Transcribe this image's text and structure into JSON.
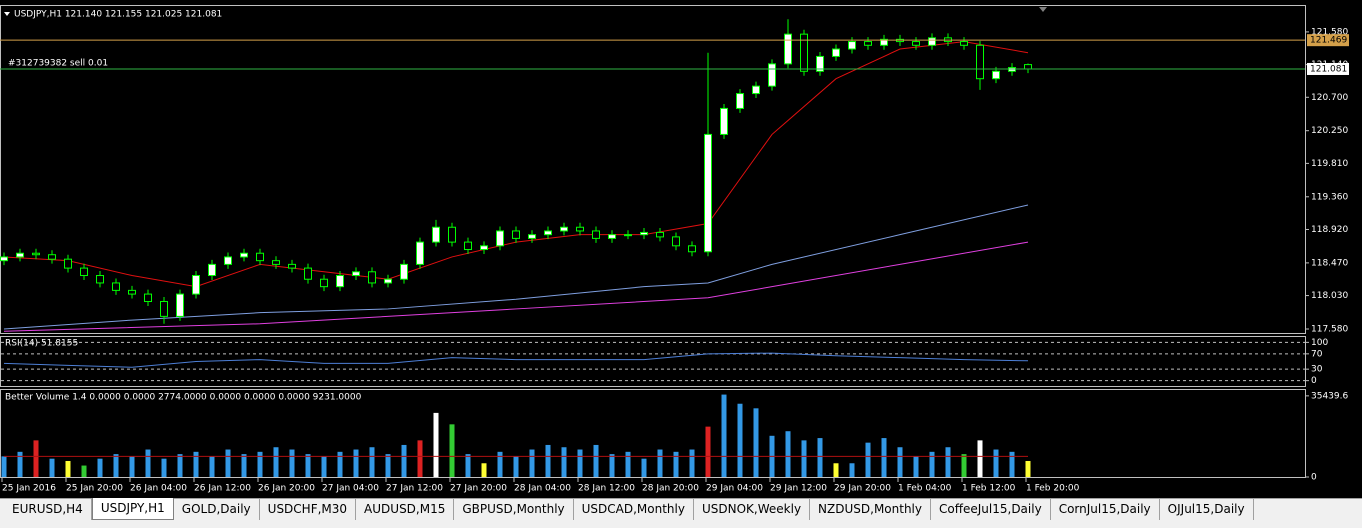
{
  "chart_data": [
    {
      "type": "candlestick",
      "title": "USDJPY,H1  121.140 121.155 121.025 121.081",
      "open": [
        118.5,
        118.55,
        118.6,
        118.58,
        118.52,
        118.4,
        118.3,
        118.2,
        118.1,
        118.05,
        117.95,
        117.75,
        118.05,
        118.3,
        118.45,
        118.55,
        118.6,
        118.5,
        118.45,
        118.4,
        118.25,
        118.15,
        118.3,
        118.35,
        118.2,
        118.25,
        118.45,
        118.75,
        118.95,
        118.75,
        118.65,
        118.7,
        118.9,
        118.8,
        118.85,
        118.9,
        118.95,
        118.9,
        118.8,
        118.85,
        118.85,
        118.88,
        118.82,
        118.7,
        118.62,
        120.2,
        120.55,
        120.75,
        120.85,
        121.15,
        121.55,
        121.05,
        121.25,
        121.35,
        121.45,
        121.4,
        121.48,
        121.45,
        121.4,
        121.5,
        121.45,
        121.4,
        120.95,
        121.05,
        121.14
      ],
      "high": [
        118.61,
        118.66,
        118.66,
        118.64,
        118.58,
        118.46,
        118.36,
        118.26,
        118.16,
        118.11,
        118.01,
        118.11,
        118.36,
        118.51,
        118.61,
        118.66,
        118.66,
        118.56,
        118.51,
        118.46,
        118.31,
        118.36,
        118.41,
        118.41,
        118.31,
        118.51,
        118.81,
        119.05,
        119.01,
        118.81,
        118.76,
        118.96,
        118.96,
        118.91,
        118.96,
        119.01,
        119.01,
        118.96,
        118.91,
        118.91,
        118.94,
        118.94,
        118.88,
        118.76,
        121.3,
        120.61,
        120.81,
        120.91,
        121.21,
        121.75,
        121.61,
        121.31,
        121.41,
        121.51,
        121.51,
        121.54,
        121.54,
        121.51,
        121.56,
        121.56,
        121.51,
        121.46,
        121.11,
        121.16,
        121.155
      ],
      "low": [
        118.44,
        118.49,
        118.52,
        118.46,
        118.34,
        118.24,
        118.14,
        118.04,
        117.99,
        117.89,
        117.65,
        117.69,
        117.99,
        118.24,
        118.39,
        118.49,
        118.44,
        118.39,
        118.34,
        118.19,
        118.09,
        118.09,
        118.24,
        118.14,
        118.14,
        118.19,
        118.39,
        118.69,
        118.69,
        118.59,
        118.59,
        118.64,
        118.74,
        118.74,
        118.79,
        118.84,
        118.84,
        118.74,
        118.74,
        118.79,
        118.79,
        118.76,
        118.64,
        118.56,
        118.56,
        120.14,
        120.49,
        120.69,
        120.79,
        121.09,
        120.99,
        120.99,
        121.19,
        121.29,
        121.34,
        121.34,
        121.39,
        121.34,
        121.34,
        121.39,
        121.34,
        120.8,
        120.89,
        120.99,
        121.025
      ],
      "close": [
        118.55,
        118.6,
        118.58,
        118.52,
        118.4,
        118.3,
        118.2,
        118.1,
        118.05,
        117.95,
        117.75,
        118.05,
        118.3,
        118.45,
        118.55,
        118.6,
        118.5,
        118.45,
        118.4,
        118.25,
        118.15,
        118.3,
        118.35,
        118.2,
        118.25,
        118.45,
        118.75,
        118.95,
        118.75,
        118.65,
        118.7,
        118.9,
        118.8,
        118.85,
        118.9,
        118.95,
        118.9,
        118.8,
        118.85,
        118.85,
        118.88,
        118.82,
        118.7,
        118.62,
        120.2,
        120.55,
        120.75,
        120.85,
        121.15,
        121.55,
        121.05,
        121.25,
        121.35,
        121.45,
        121.4,
        121.48,
        121.45,
        121.4,
        121.5,
        121.45,
        121.4,
        120.95,
        121.05,
        121.1,
        121.081
      ],
      "bull_color": "#ffffff",
      "bear_color": "#000000",
      "wick_color": "#00ff00",
      "ylim": [
        117.526,
        121.929
      ],
      "yticks": [
        {
          "value": 121.58,
          "label": "121.580"
        },
        {
          "value": 121.14,
          "label": "121.140"
        },
        {
          "value": 120.7,
          "label": "120.700"
        },
        {
          "value": 120.25,
          "label": "120.250"
        },
        {
          "value": 119.81,
          "label": "119.810"
        },
        {
          "value": 119.36,
          "label": "119.360"
        },
        {
          "value": 118.92,
          "label": "118.920"
        },
        {
          "value": 118.47,
          "label": "118.470"
        },
        {
          "value": 118.03,
          "label": "118.030"
        },
        {
          "value": 117.58,
          "label": "117.580"
        }
      ],
      "x_labels": [
        "25 Jan 2016",
        "25 Jan 20:00",
        "26 Jan 04:00",
        "26 Jan 12:00",
        "26 Jan 20:00",
        "27 Jan 04:00",
        "27 Jan 12:00",
        "27 Jan 20:00",
        "28 Jan 04:00",
        "28 Jan 12:00",
        "28 Jan 20:00",
        "29 Jan 04:00",
        "29 Jan 12:00",
        "29 Jan 20:00",
        "1 Feb 04:00",
        "1 Feb 12:00",
        "1 Feb 20:00"
      ],
      "lines": [
        {
          "color": "#e01010",
          "x": [
            0,
            4,
            8,
            12,
            16,
            20,
            24,
            28,
            32,
            36,
            40,
            44,
            48,
            52,
            56,
            60,
            64
          ],
          "values": [
            118.55,
            118.5,
            118.3,
            118.15,
            118.45,
            118.35,
            118.25,
            118.55,
            118.75,
            118.85,
            118.85,
            119.0,
            120.2,
            120.95,
            121.35,
            121.45,
            121.3
          ]
        },
        {
          "color": "#7f9fe0",
          "x": [
            0,
            8,
            16,
            24,
            32,
            40,
            44,
            48,
            56,
            64
          ],
          "values": [
            117.58,
            117.7,
            117.8,
            117.85,
            117.98,
            118.15,
            118.2,
            118.45,
            118.85,
            119.25
          ]
        },
        {
          "color": "#e040e0",
          "x": [
            0,
            16,
            32,
            44,
            48,
            56,
            64
          ],
          "values": [
            117.55,
            117.65,
            117.85,
            118.0,
            118.15,
            118.45,
            118.75
          ]
        }
      ],
      "levels": [
        {
          "value": 121.469,
          "color": "#d4a04a"
        },
        {
          "value": 121.081,
          "color": "#2fb344",
          "label": "#312739382 sell 0.01"
        }
      ]
    },
    {
      "type": "line",
      "title": "RSI(14) 51.8155",
      "x": [
        0,
        4,
        8,
        12,
        16,
        20,
        24,
        28,
        32,
        36,
        40,
        44,
        48,
        52,
        56,
        60,
        64
      ],
      "values": [
        45,
        40,
        35,
        50,
        55,
        45,
        45,
        60,
        55,
        55,
        55,
        70,
        72,
        65,
        60,
        55,
        51.8155
      ],
      "color": "#4d7fd6",
      "ylim": [
        -14,
        114
      ],
      "yticks": [
        100,
        70,
        30,
        0
      ],
      "grid": "dashed"
    },
    {
      "type": "bar",
      "title": "Better Volume 1.4 0.0000 0.0000 2774.0000 0.0000 0.0000 0.0000 9231.0000",
      "values": [
        9000,
        11000,
        16000,
        8000,
        7000,
        5000,
        8000,
        10000,
        9000,
        12000,
        8000,
        10000,
        11000,
        9000,
        12000,
        10000,
        11000,
        13000,
        12000,
        10000,
        9000,
        11000,
        12000,
        13000,
        10000,
        14000,
        16000,
        28000,
        23000,
        10000,
        6000,
        11000,
        9000,
        12000,
        14000,
        13000,
        12000,
        14000,
        10000,
        11000,
        8000,
        12000,
        11000,
        12000,
        22000,
        36000,
        32000,
        30000,
        18000,
        20000,
        16000,
        17000,
        6000,
        6000,
        15000,
        17000,
        13000,
        9000,
        11000,
        13000,
        10000,
        16000,
        12000,
        11000,
        7000
      ],
      "colors": [
        "#3399e6",
        "#3399e6",
        "#dd2222",
        "#3399e6",
        "#ffff33",
        "#33cc33",
        "#3399e6",
        "#3399e6",
        "#3399e6",
        "#3399e6",
        "#3399e6",
        "#3399e6",
        "#3399e6",
        "#3399e6",
        "#3399e6",
        "#3399e6",
        "#3399e6",
        "#3399e6",
        "#3399e6",
        "#3399e6",
        "#3399e6",
        "#3399e6",
        "#3399e6",
        "#3399e6",
        "#3399e6",
        "#3399e6",
        "#dd2222",
        "#ffffff",
        "#33cc33",
        "#3399e6",
        "#ffff33",
        "#3399e6",
        "#3399e6",
        "#3399e6",
        "#3399e6",
        "#3399e6",
        "#3399e6",
        "#3399e6",
        "#3399e6",
        "#3399e6",
        "#3399e6",
        "#3399e6",
        "#3399e6",
        "#3399e6",
        "#dd2222",
        "#3399e6",
        "#3399e6",
        "#3399e6",
        "#3399e6",
        "#3399e6",
        "#3399e6",
        "#3399e6",
        "#ffff33",
        "#3399e6",
        "#3399e6",
        "#3399e6",
        "#3399e6",
        "#3399e6",
        "#3399e6",
        "#3399e6",
        "#33cc33",
        "#ffffff",
        "#3399e6",
        "#3399e6",
        "#ffff33"
      ],
      "ylim": [
        0,
        38000
      ],
      "yticks": [
        35439.6,
        0
      ],
      "line": {
        "color": "#b01010",
        "x": [
          0,
          64
        ],
        "values": [
          9000,
          9000
        ]
      }
    }
  ],
  "tabs": [
    {
      "label": "EURUSD,H4",
      "active": false
    },
    {
      "label": "USDJPY,H1",
      "active": true
    },
    {
      "label": "GOLD,Daily",
      "active": false
    },
    {
      "label": "USDCHF,M30",
      "active": false
    },
    {
      "label": "AUDUSD,M15",
      "active": false
    },
    {
      "label": "GBPUSD,Monthly",
      "active": false
    },
    {
      "label": "USDCAD,Monthly",
      "active": false
    },
    {
      "label": "USDNOK,Weekly",
      "active": false
    },
    {
      "label": "NZDUSD,Monthly",
      "active": false
    },
    {
      "label": "CoffeeJul15,Daily",
      "active": false
    },
    {
      "label": "CornJul15,Daily",
      "active": false
    },
    {
      "label": "OJJul15,Daily",
      "active": false
    }
  ]
}
